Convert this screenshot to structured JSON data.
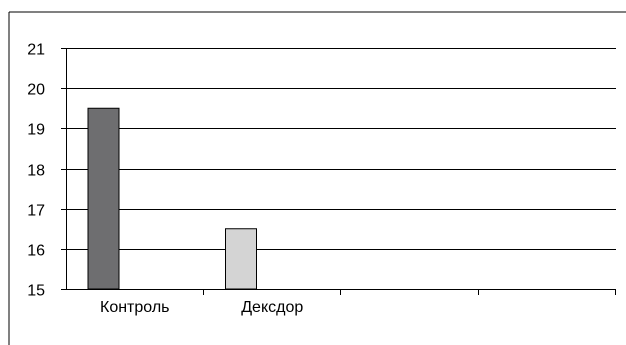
{
  "chart_data": {
    "type": "bar",
    "categories": [
      "Контроль",
      "Дексдор"
    ],
    "category_slots": 4,
    "values": [
      19.5,
      16.5
    ],
    "bar_colors": [
      "#6e6e70",
      "#d4d4d4"
    ],
    "ylim": [
      15,
      21
    ],
    "yticks": [
      {
        "value": 15,
        "label": "15"
      },
      {
        "value": 16,
        "label": "16"
      },
      {
        "value": 17,
        "label": "17"
      },
      {
        "value": 18,
        "label": "18"
      },
      {
        "value": 19,
        "label": "19"
      },
      {
        "value": 20,
        "label": "20"
      },
      {
        "value": 21,
        "label": "21"
      }
    ],
    "grid": true,
    "title": "",
    "xlabel": "",
    "ylabel": ""
  }
}
